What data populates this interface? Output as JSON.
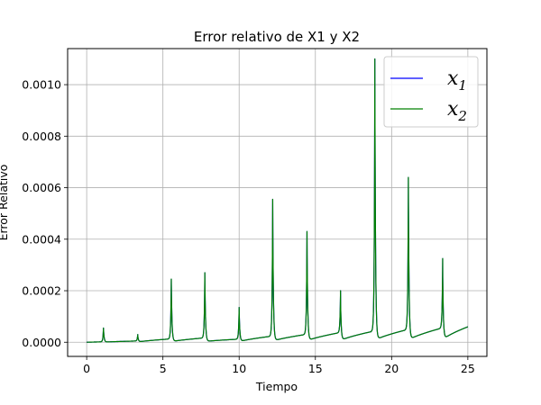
{
  "chart_data": {
    "type": "line",
    "title": "Error relativo de X1 y X2",
    "xlabel": "Tiempo",
    "ylabel": "Error Relativo",
    "xlim": [
      -1.25,
      26.25
    ],
    "ylim": [
      -5.5e-05,
      0.00114
    ],
    "xticks": [
      0,
      5,
      10,
      15,
      20,
      25
    ],
    "xtick_labels": [
      "0",
      "5",
      "10",
      "15",
      "20",
      "25"
    ],
    "yticks": [
      0,
      0.0002,
      0.0004,
      0.0006,
      0.0008,
      0.001
    ],
    "ytick_labels": [
      "0.0000",
      "0.0002",
      "0.0004",
      "0.0006",
      "0.0008",
      "0.0010"
    ],
    "grid": true,
    "legend_position": "top-right",
    "x_range": [
      0,
      25
    ],
    "spike_times": [
      1.1,
      3.35,
      5.55,
      7.75,
      10.0,
      12.2,
      14.45,
      16.65,
      18.9,
      21.1,
      23.35
    ],
    "spike_peaks": [
      5.5e-05,
      3e-05,
      0.000245,
      0.00027,
      0.000135,
      0.000555,
      0.00043,
      0.0002,
      0.0011,
      0.00064,
      0.000325
    ],
    "baseline_before_spike": [
      1.5e-06,
      5e-06,
      1.3e-05,
      1.7e-05,
      1.2e-05,
      2.4e-05,
      3.1e-05,
      3.8e-05,
      4.4e-05,
      5e-05,
      5.6e-05
    ],
    "end_value": 6e-05,
    "series": [
      {
        "name": "x",
        "subscript": "1",
        "color": "#0000ff"
      },
      {
        "name": "x",
        "subscript": "2",
        "color": "#008000"
      }
    ]
  }
}
